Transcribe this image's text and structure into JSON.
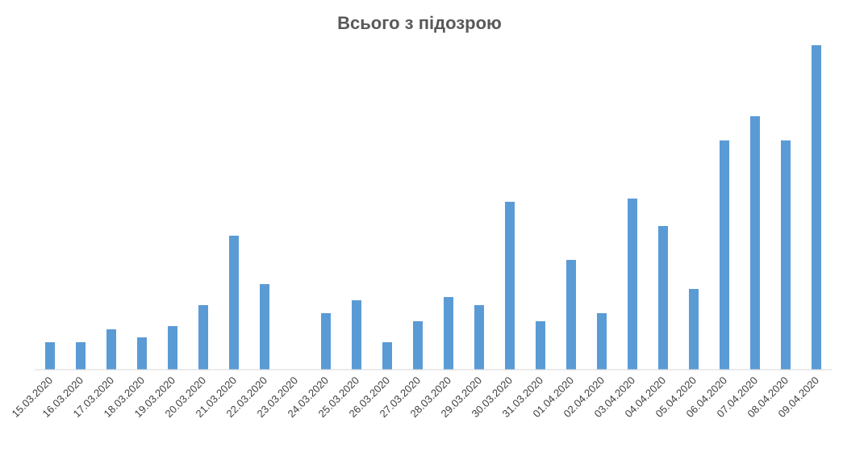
{
  "chart_data": {
    "type": "bar",
    "title": "Всього з підозрою",
    "categories": [
      "15.03.2020",
      "16.03.2020",
      "17.03.2020",
      "18.03.2020",
      "19.03.2020",
      "20.03.2020",
      "21.03.2020",
      "22.03.2020",
      "23.03.2020",
      "24.03.2020",
      "25.03.2020",
      "26.03.2020",
      "27.03.2020",
      "28.03.2020",
      "29.03.2020",
      "30.03.2020",
      "31.03.2020",
      "01.04.2020",
      "02.04.2020",
      "03.04.2020",
      "04.04.2020",
      "05.04.2020",
      "06.04.2020",
      "07.04.2020",
      "08.04.2020",
      "09.04.2020"
    ],
    "values": [
      17,
      17,
      25,
      20,
      27,
      40,
      83,
      53,
      0,
      35,
      43,
      17,
      30,
      45,
      40,
      104,
      30,
      68,
      35,
      106,
      89,
      50,
      142,
      157,
      142,
      201
    ],
    "color": "#5b9bd5",
    "ylim": [
      0,
      201
    ],
    "grid": false
  }
}
